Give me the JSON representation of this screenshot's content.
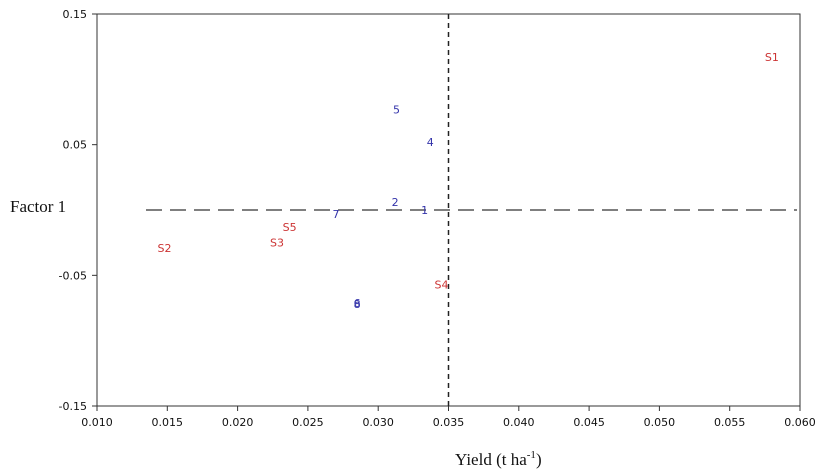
{
  "chart_data": {
    "type": "scatter",
    "xlabel": "Yield (t ha",
    "xlabel_superscript": "-1",
    "xlabel_close": ")",
    "ylabel": "Factor 1",
    "xlim": [
      0.01,
      0.06
    ],
    "ylim": [
      -0.15,
      0.15
    ],
    "x_ticks": [
      "0.010",
      "0.015",
      "0.020",
      "0.025",
      "0.030",
      "0.035",
      "0.040",
      "0.045",
      "0.050",
      "0.055",
      "0.060"
    ],
    "y_ticks": [
      "0.15",
      "0.05",
      "-0.05",
      "-0.15"
    ],
    "reference_lines": {
      "vertical_x": 0.035,
      "horizontal_y": 0.0
    },
    "grid": false,
    "series": [
      {
        "color": "#cc3333",
        "points": [
          {
            "label": "S1",
            "x": 0.058,
            "y": 0.117
          },
          {
            "label": "S2",
            "x": 0.0148,
            "y": -0.029
          },
          {
            "label": "S3",
            "x": 0.0228,
            "y": -0.025
          },
          {
            "label": "S4",
            "x": 0.0345,
            "y": -0.057
          },
          {
            "label": "S5",
            "x": 0.0237,
            "y": -0.013
          }
        ]
      },
      {
        "color": "#3333aa",
        "points": [
          {
            "label": "1",
            "x": 0.0333,
            "y": 0.0
          },
          {
            "label": "2",
            "x": 0.0312,
            "y": 0.006
          },
          {
            "label": "4",
            "x": 0.0337,
            "y": 0.052
          },
          {
            "label": "5",
            "x": 0.0313,
            "y": 0.077
          },
          {
            "label": "6",
            "x": 0.0285,
            "y": -0.071
          },
          {
            "label": "7",
            "x": 0.027,
            "y": -0.003
          },
          {
            "label": "8",
            "x": 0.0285,
            "y": -0.072
          }
        ]
      }
    ]
  }
}
